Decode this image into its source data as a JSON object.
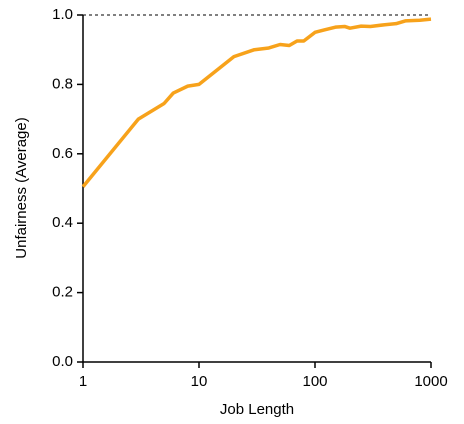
{
  "chart_data": {
    "type": "line",
    "xlabel": "Job Length",
    "ylabel": "Unfairness (Average)",
    "xscale": "log",
    "x": [
      1,
      3,
      5,
      6,
      8,
      10,
      20,
      30,
      40,
      50,
      60,
      70,
      80,
      100,
      120,
      150,
      180,
      200,
      250,
      300,
      400,
      500,
      600,
      800,
      1000
    ],
    "series": [
      {
        "color": "#f7a21b",
        "values": [
          0.505,
          0.7,
          0.745,
          0.775,
          0.795,
          0.8,
          0.88,
          0.9,
          0.905,
          0.915,
          0.912,
          0.925,
          0.925,
          0.95,
          0.957,
          0.965,
          0.967,
          0.962,
          0.968,
          0.967,
          0.972,
          0.975,
          0.983,
          0.985,
          0.988
        ]
      }
    ],
    "xlim": [
      1,
      1000
    ],
    "xticks": [
      1,
      10,
      100,
      1000
    ],
    "ylim": [
      0,
      1
    ],
    "yticks": [
      {
        "value": 0,
        "label": "0.0"
      },
      0.2,
      0.4,
      0.6,
      0.8,
      {
        "value": 1,
        "label": "1.0"
      }
    ],
    "hline": 1
  }
}
